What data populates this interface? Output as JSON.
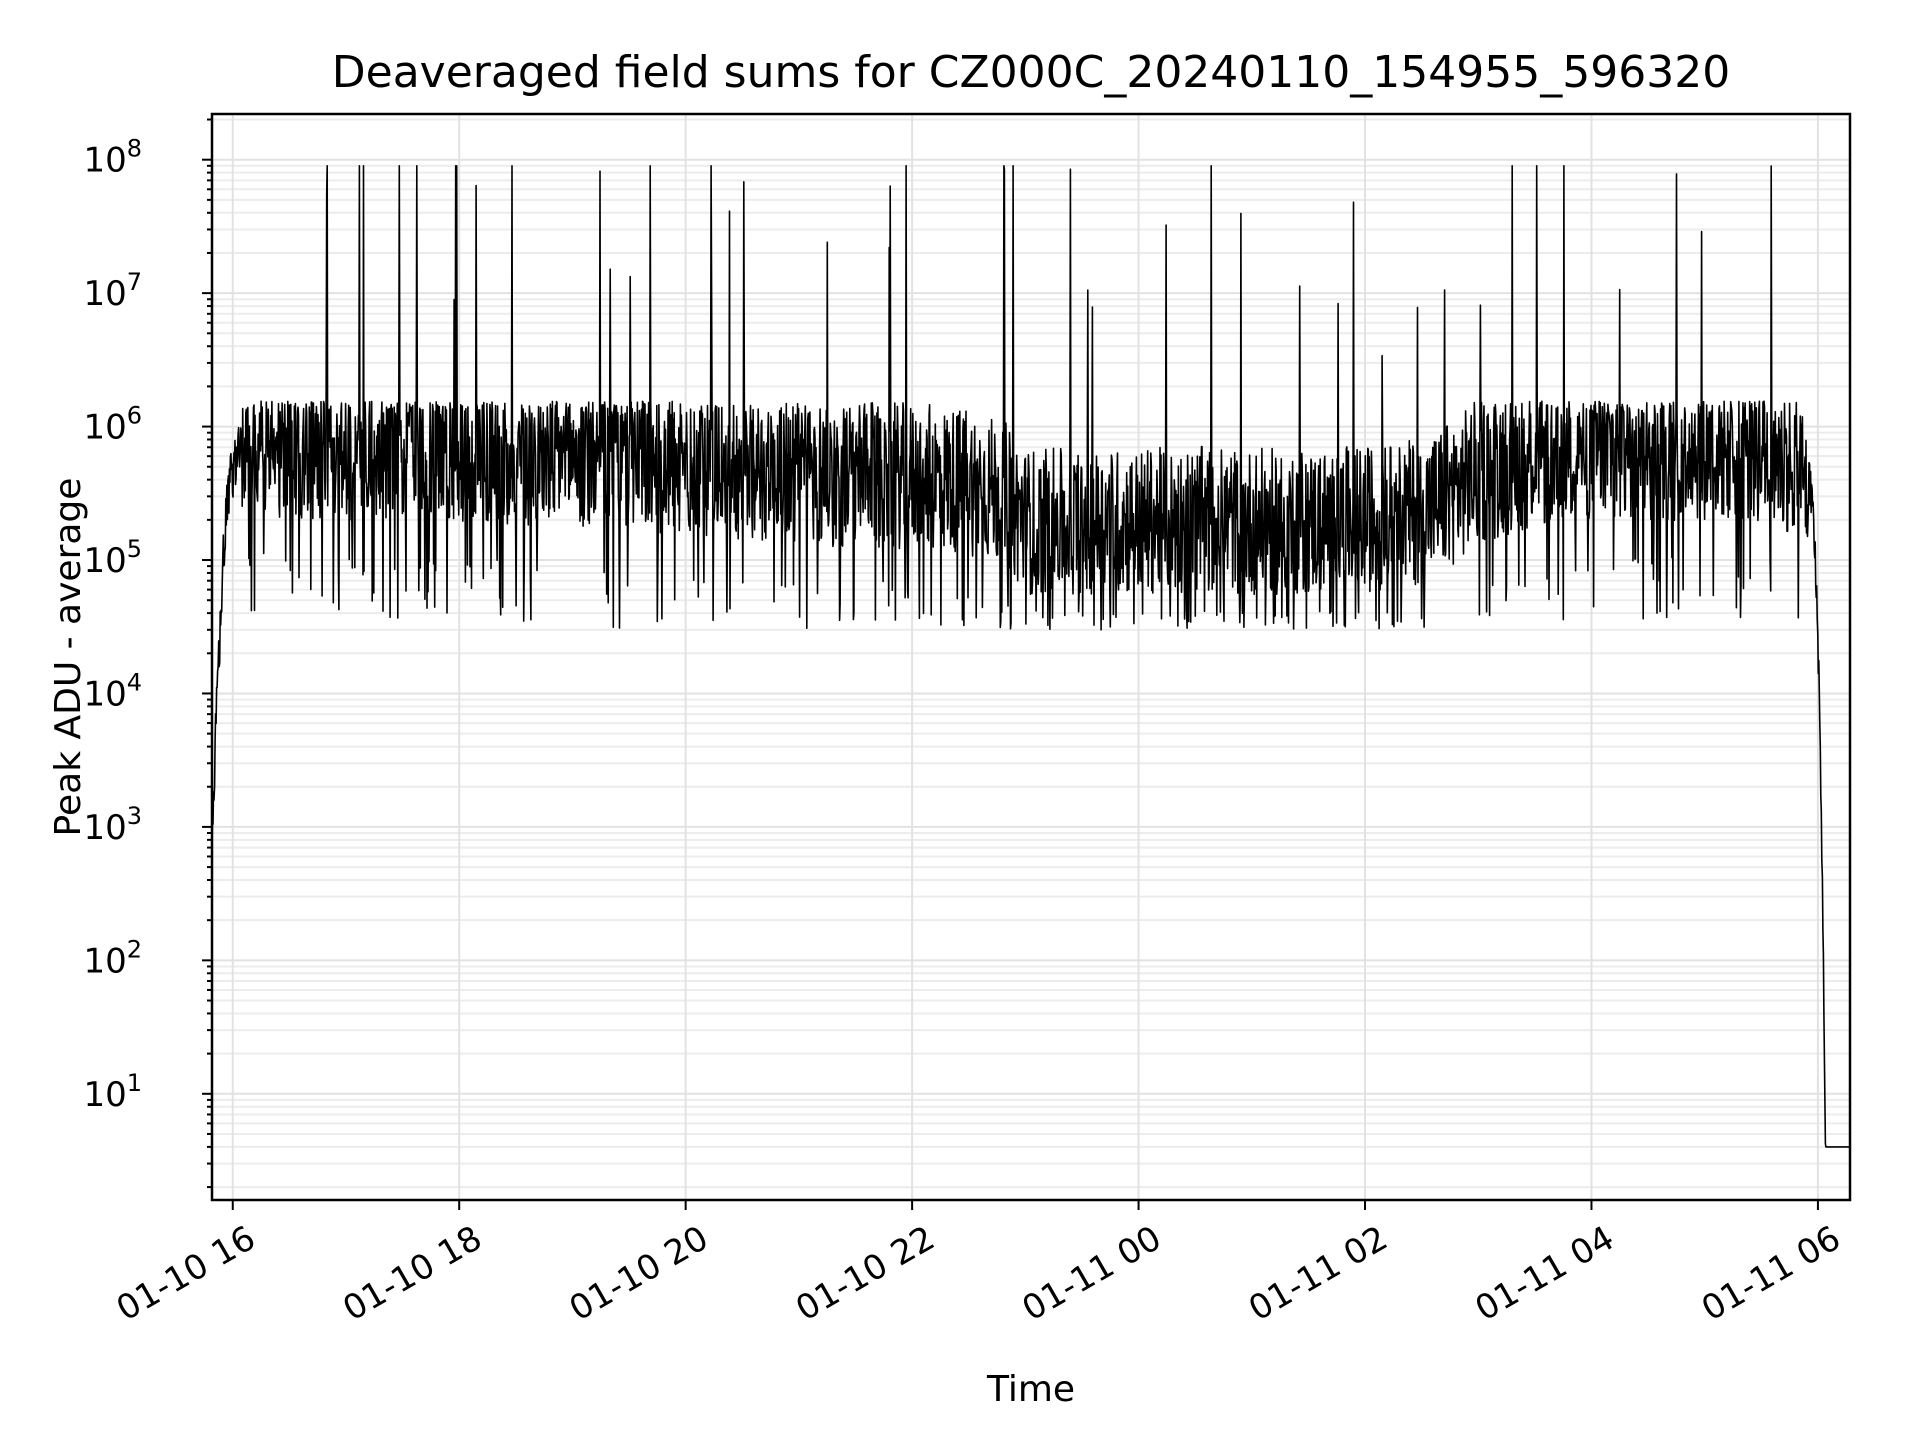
{
  "chart_data": {
    "type": "line",
    "title": "Deaveraged field sums for CZ000C_20240110_154955_596320",
    "xlabel": "Time",
    "ylabel": "Peak ADU - average",
    "yscale": "log",
    "grid": true,
    "x_range": [
      "2024-01-10 15:49",
      "2024-01-11 06:17"
    ],
    "ylim": [
      1.6,
      220000000.0
    ],
    "x_ticks": [
      {
        "value": "2024-01-10 16:00",
        "label": "01-10 16"
      },
      {
        "value": "2024-01-10 18:00",
        "label": "01-10 18"
      },
      {
        "value": "2024-01-10 20:00",
        "label": "01-10 20"
      },
      {
        "value": "2024-01-10 22:00",
        "label": "01-10 22"
      },
      {
        "value": "2024-01-11 00:00",
        "label": "01-11 00"
      },
      {
        "value": "2024-01-11 02:00",
        "label": "01-11 02"
      },
      {
        "value": "2024-01-11 04:00",
        "label": "01-11 04"
      },
      {
        "value": "2024-01-11 06:00",
        "label": "01-11 06"
      }
    ],
    "y_ticks": [
      {
        "value": 10,
        "base": "10",
        "exp": "1"
      },
      {
        "value": 100,
        "base": "10",
        "exp": "2"
      },
      {
        "value": 1000,
        "base": "10",
        "exp": "3"
      },
      {
        "value": 10000,
        "base": "10",
        "exp": "4"
      },
      {
        "value": 100000,
        "base": "10",
        "exp": "5"
      },
      {
        "value": 1000000,
        "base": "10",
        "exp": "6"
      },
      {
        "value": 10000000,
        "base": "10",
        "exp": "7"
      },
      {
        "value": 100000000,
        "base": "10",
        "exp": "8"
      }
    ],
    "series": [
      {
        "color": "#000000",
        "x": [
          "2024-01-10 15:49",
          "2024-01-10 15:51",
          "2024-01-10 15:53",
          "2024-01-10 15:55",
          "2024-01-10 15:57",
          "2024-01-10 15:59",
          "2024-01-10 16:02",
          "2024-01-10 16:05",
          "2024-01-10 16:10",
          "2024-01-10 16:15",
          "2024-01-10 16:20",
          "2024-01-10 16:25",
          "2024-01-10 16:30",
          "2024-01-10 16:45",
          "2024-01-10 17:00",
          "2024-01-10 17:20",
          "2024-01-10 17:40",
          "2024-01-10 18:00",
          "2024-01-10 18:30",
          "2024-01-10 19:00",
          "2024-01-10 19:30",
          "2024-01-10 20:00",
          "2024-01-10 20:30",
          "2024-01-10 21:00",
          "2024-01-10 21:30",
          "2024-01-10 22:00",
          "2024-01-10 22:30",
          "2024-01-10 22:50",
          "2024-01-10 23:00",
          "2024-01-10 23:30",
          "2024-01-11 00:00",
          "2024-01-11 00:30",
          "2024-01-11 01:00",
          "2024-01-11 01:30",
          "2024-01-11 02:00",
          "2024-01-11 02:30",
          "2024-01-11 02:50",
          "2024-01-11 03:00",
          "2024-01-11 03:30",
          "2024-01-11 04:00",
          "2024-01-11 04:30",
          "2024-01-11 05:00",
          "2024-01-11 05:30",
          "2024-01-11 05:50",
          "2024-01-11 05:57",
          "2024-01-11 06:00",
          "2024-01-11 06:02",
          "2024-01-11 06:04",
          "2024-01-11 06:08",
          "2024-01-11 06:17"
        ],
        "y": [
          600,
          5000,
          25000,
          100000,
          250000,
          400000,
          600000,
          800000,
          900000,
          1000000,
          1000000,
          950000,
          900000,
          850000,
          900000,
          900000,
          900000,
          850000,
          800000,
          800000,
          750000,
          700000,
          650000,
          600000,
          550000,
          550000,
          500000,
          400000,
          250000,
          250000,
          250000,
          260000,
          250000,
          250000,
          260000,
          300000,
          450000,
          600000,
          800000,
          900000,
          900000,
          900000,
          850000,
          700000,
          300000,
          30000,
          1000,
          4,
          4,
          4
        ]
      }
    ]
  }
}
